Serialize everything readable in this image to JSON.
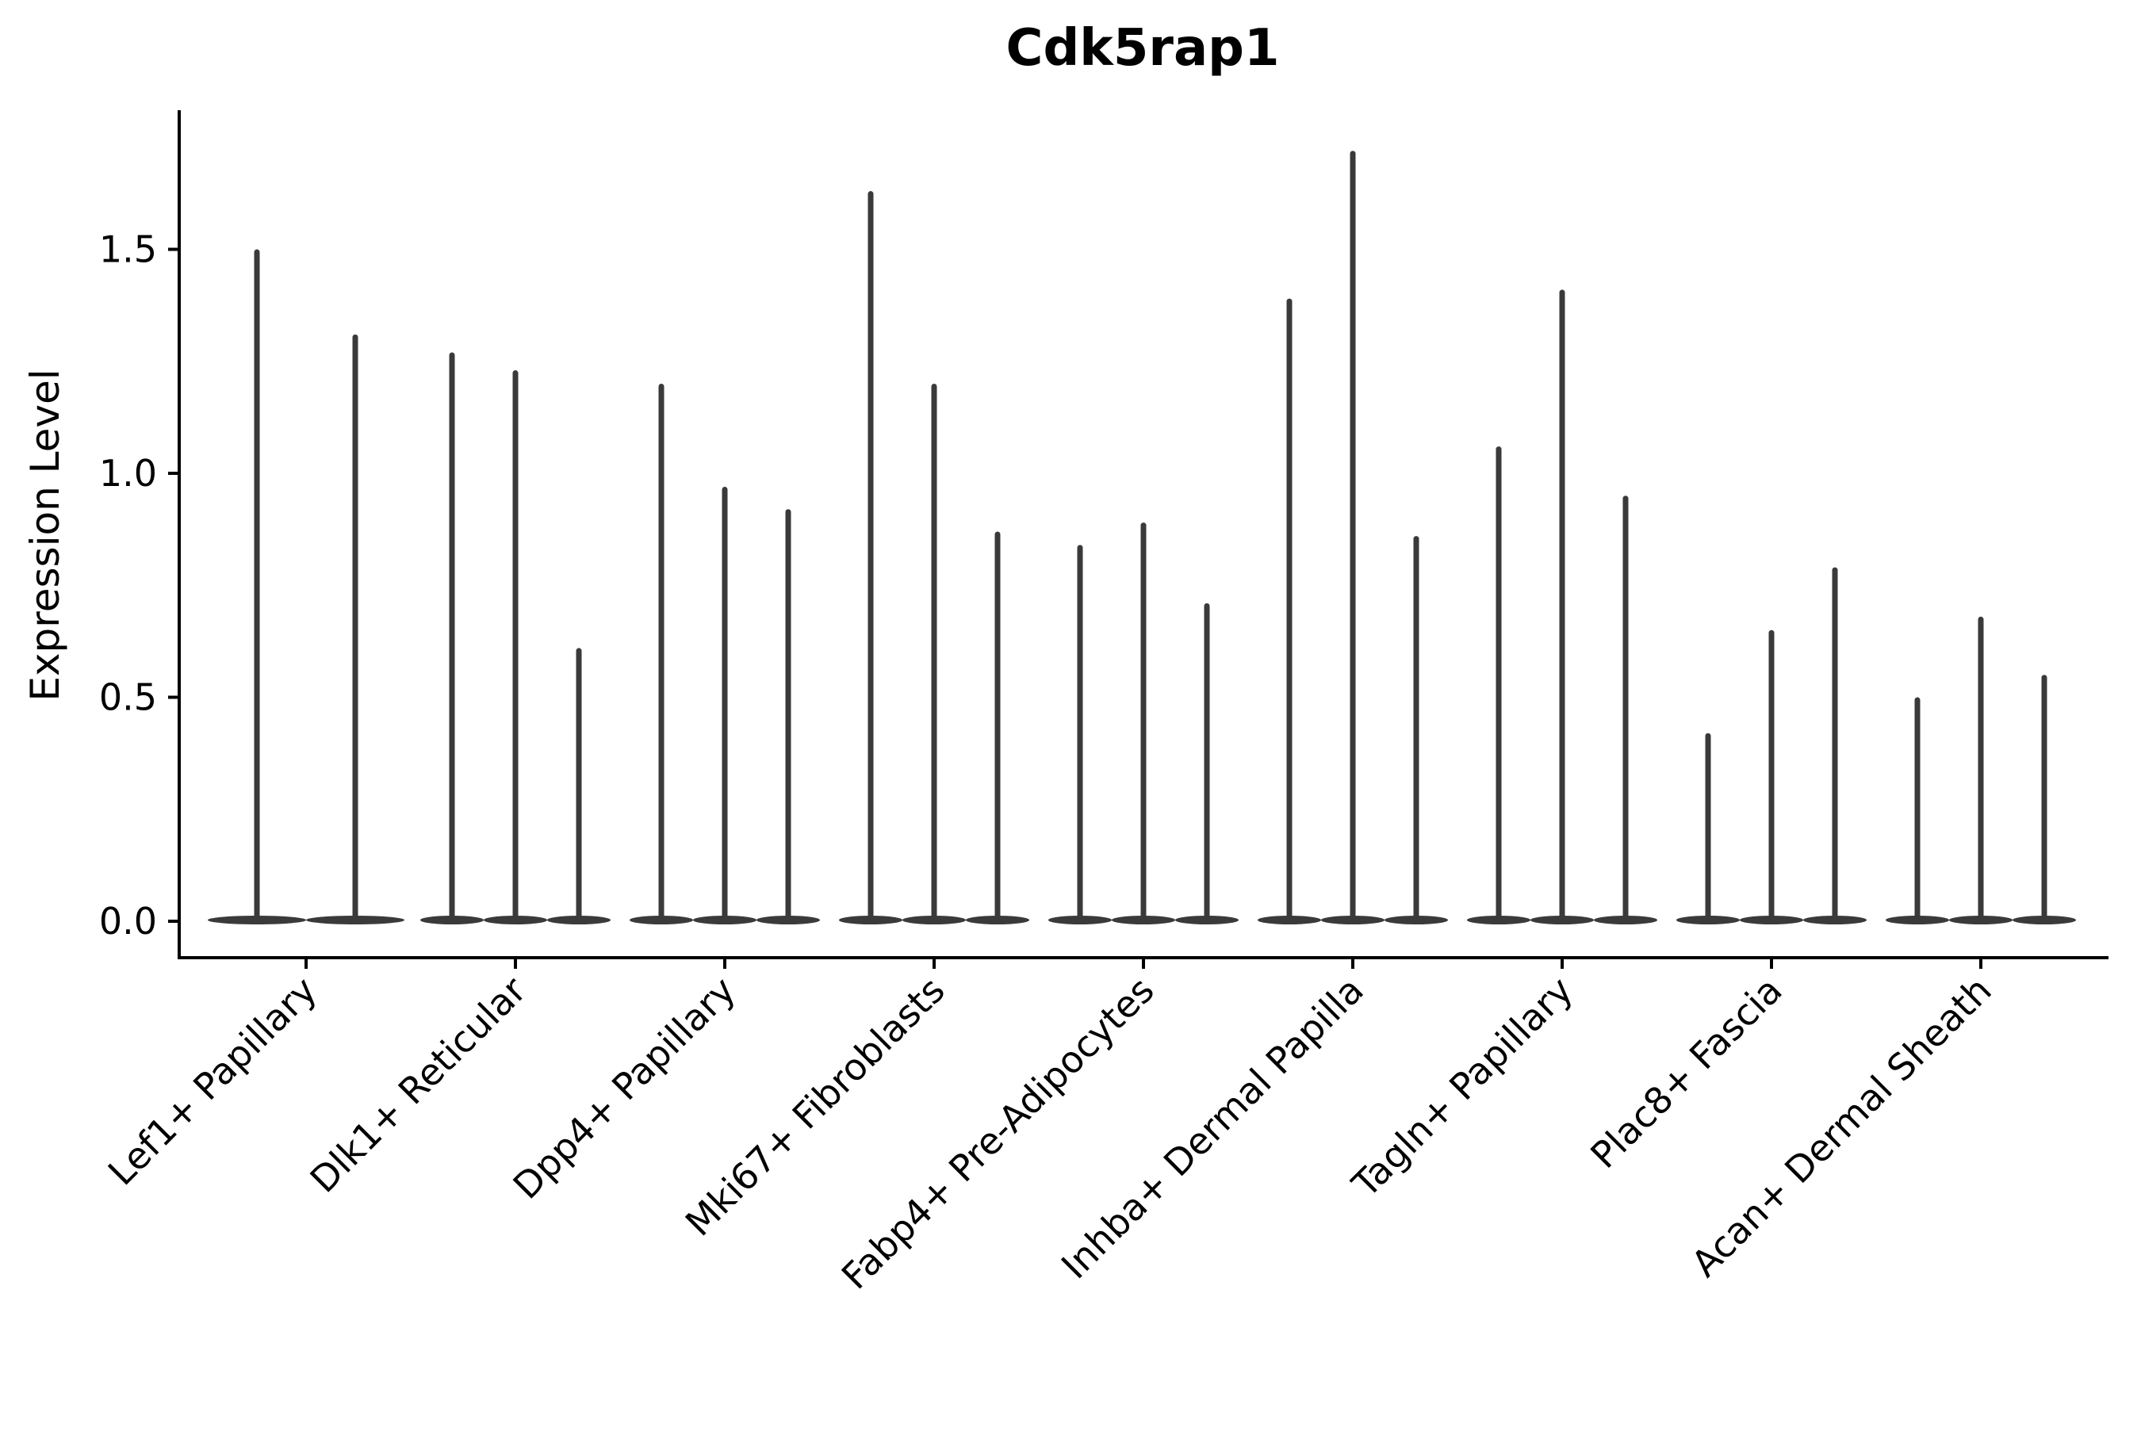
{
  "title": "Cdk5rap1",
  "colors": {
    "violin": "#3a3a3a",
    "axis": "#000000",
    "text": "#000000",
    "background": "#ffffff"
  },
  "chart_data": {
    "type": "violin",
    "title": "Cdk5rap1",
    "xlabel": "",
    "ylabel": "Expression Level",
    "ylim": [
      0,
      1.8
    ],
    "yticks": [
      0.0,
      0.5,
      1.0,
      1.5
    ],
    "grid": false,
    "legend": "none",
    "x_tick_rotation_deg": 45,
    "categories": [
      "Lef1+ Papillary",
      "Dlk1+ Reticular",
      "Dpp4+ Papillary",
      "Mki67+ Fibroblasts",
      "Fabp4+ Pre-Adipocytes",
      "Inhba+ Dermal Papilla",
      "Tagln+ Papillary",
      "Plac8+ Fascia",
      "Acan+ Dermal Sheath"
    ],
    "series": [
      {
        "category": "Lef1+ Papillary",
        "violin_max_values": [
          1.5,
          1.31
        ]
      },
      {
        "category": "Dlk1+ Reticular",
        "violin_max_values": [
          1.27,
          1.23,
          0.61
        ]
      },
      {
        "category": "Dpp4+ Papillary",
        "violin_max_values": [
          1.2,
          0.97,
          0.92
        ]
      },
      {
        "category": "Mki67+ Fibroblasts",
        "violin_max_values": [
          1.63,
          1.2,
          0.87
        ]
      },
      {
        "category": "Fabp4+ Pre-Adipocytes",
        "violin_max_values": [
          0.84,
          0.89,
          0.71
        ]
      },
      {
        "category": "Inhba+ Dermal Papilla",
        "violin_max_values": [
          1.39,
          1.72,
          0.86
        ]
      },
      {
        "category": "Tagln+ Papillary",
        "violin_max_values": [
          1.06,
          1.41,
          0.95
        ]
      },
      {
        "category": "Plac8+ Fascia",
        "violin_max_values": [
          0.42,
          0.65,
          0.79
        ]
      },
      {
        "category": "Acan+ Dermal Sheath",
        "violin_max_values": [
          0.5,
          0.68,
          0.55
        ]
      }
    ],
    "description": "Each category shows thin violins (mostly-zero expression): a wide flat density base at 0 and a narrow spike up to the maximum expression value."
  }
}
